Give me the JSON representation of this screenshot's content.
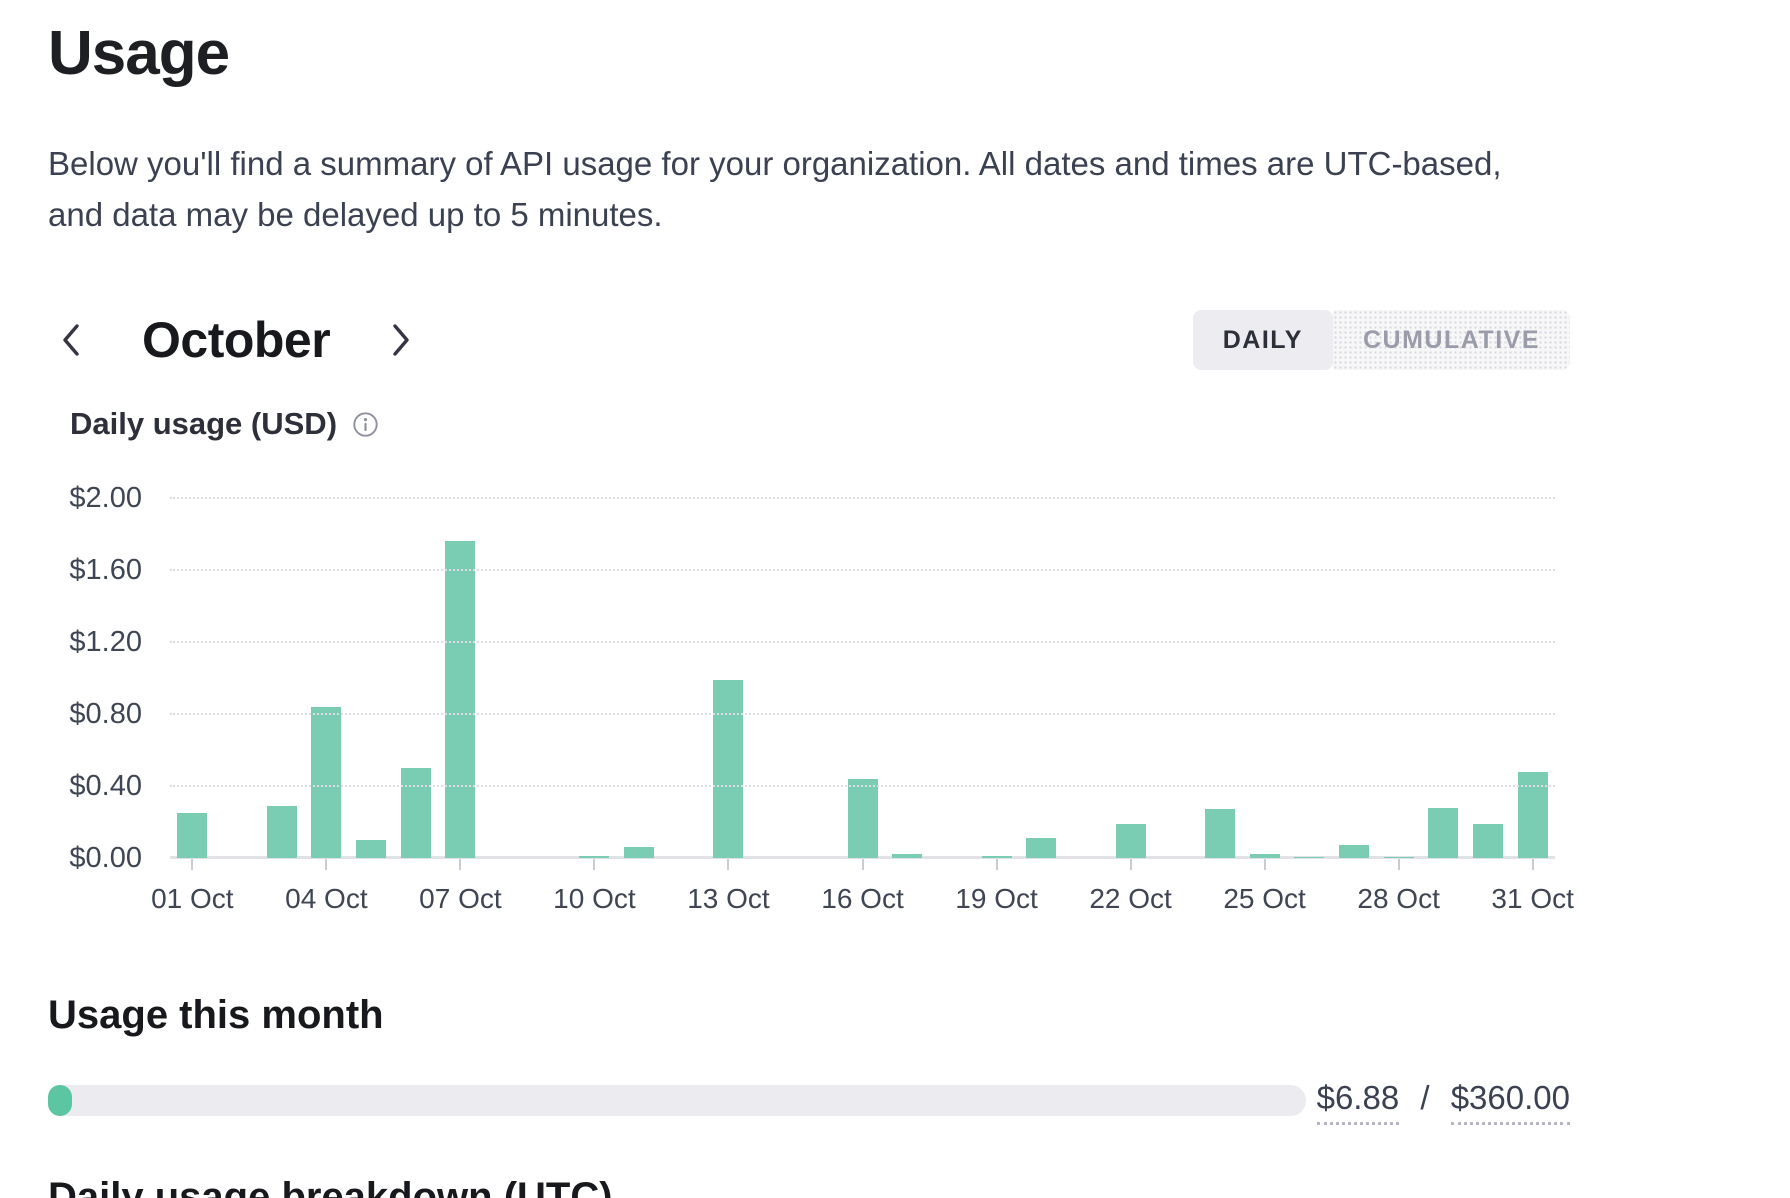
{
  "page": {
    "title": "Usage",
    "description_line1": "Below you'll find a summary of API usage for your organization. All dates and times are UTC-based,",
    "description_line2": "and data may be delayed up to 5 minutes."
  },
  "month_nav": {
    "label": "October"
  },
  "view_toggle": {
    "daily_label": "DAILY",
    "cumulative_label": "CUMULATIVE",
    "selected": "DAILY"
  },
  "chart_data": {
    "type": "bar",
    "title": "Daily usage (USD)",
    "categories": [
      "01 Oct",
      "02 Oct",
      "03 Oct",
      "04 Oct",
      "05 Oct",
      "06 Oct",
      "07 Oct",
      "08 Oct",
      "09 Oct",
      "10 Oct",
      "11 Oct",
      "12 Oct",
      "13 Oct",
      "14 Oct",
      "15 Oct",
      "16 Oct",
      "17 Oct",
      "18 Oct",
      "19 Oct",
      "20 Oct",
      "21 Oct",
      "22 Oct",
      "23 Oct",
      "24 Oct",
      "25 Oct",
      "26 Oct",
      "27 Oct",
      "28 Oct",
      "29 Oct",
      "30 Oct",
      "31 Oct"
    ],
    "values": [
      0.25,
      0,
      0.29,
      0.84,
      0.1,
      0.5,
      1.76,
      0,
      0,
      0.01,
      0.06,
      0,
      0.99,
      0,
      0,
      0.44,
      0.02,
      0,
      0.01,
      0.11,
      0,
      0.19,
      0,
      0.27,
      0.02,
      0.005,
      0.07,
      0.005,
      0.28,
      0.19,
      0.48
    ],
    "ylim": [
      0,
      2.0
    ],
    "y_tick_values": [
      0,
      0.4,
      0.8,
      1.2,
      1.6,
      2.0
    ],
    "y_tick_labels": [
      "$0.00",
      "$0.40",
      "$0.80",
      "$1.20",
      "$1.60",
      "$2.00"
    ],
    "x_tick_interval": 3,
    "xlabel": "",
    "ylabel": "Daily usage (USD)",
    "grid": true,
    "legend": false,
    "bar_color": "#7accb3"
  },
  "usage_month": {
    "heading": "Usage this month",
    "used": "$6.88",
    "separator": "/",
    "limit": "$360.00",
    "percent_used": 1.91
  },
  "breakdown": {
    "heading": "Daily usage breakdown (UTC)"
  }
}
